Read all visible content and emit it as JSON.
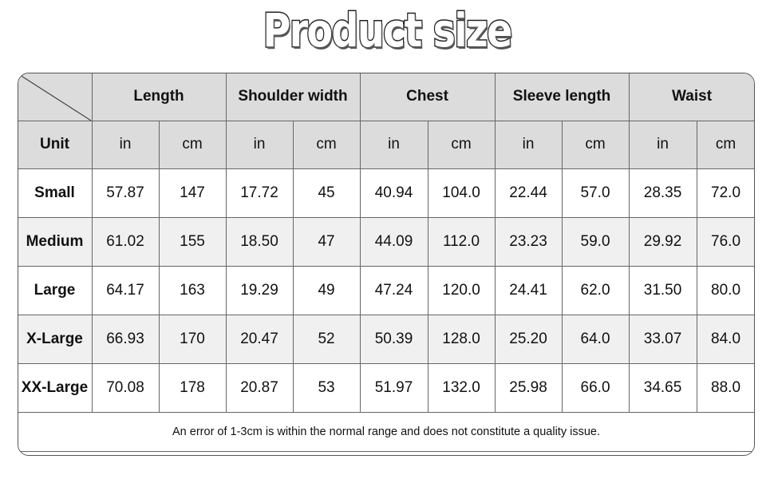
{
  "title": "Product size",
  "table": {
    "measurements": [
      "Length",
      "Shoulder width",
      "Chest",
      "Sleeve length",
      "Waist"
    ],
    "unit_label": "Unit",
    "units": [
      "in",
      "cm"
    ],
    "rows": [
      {
        "size": "Small",
        "values": [
          "57.87",
          "147",
          "17.72",
          "45",
          "40.94",
          "104.0",
          "22.44",
          "57.0",
          "28.35",
          "72.0"
        ]
      },
      {
        "size": "Medium",
        "values": [
          "61.02",
          "155",
          "18.50",
          "47",
          "44.09",
          "112.0",
          "23.23",
          "59.0",
          "29.92",
          "76.0"
        ]
      },
      {
        "size": "Large",
        "values": [
          "64.17",
          "163",
          "19.29",
          "49",
          "47.24",
          "120.0",
          "24.41",
          "62.0",
          "31.50",
          "80.0"
        ]
      },
      {
        "size": "X-Large",
        "values": [
          "66.93",
          "170",
          "20.47",
          "52",
          "50.39",
          "128.0",
          "25.20",
          "64.0",
          "33.07",
          "84.0"
        ]
      },
      {
        "size": "XX-Large",
        "values": [
          "70.08",
          "178",
          "20.87",
          "53",
          "51.97",
          "132.0",
          "25.98",
          "66.0",
          "34.65",
          "88.0"
        ]
      }
    ],
    "note": "An error of 1-3cm is within the normal range and does not constitute a quality issue."
  }
}
